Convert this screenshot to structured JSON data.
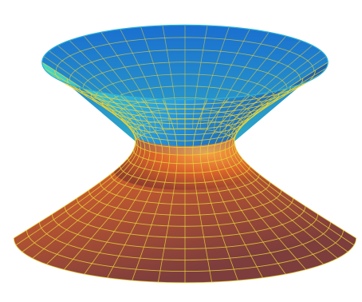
{
  "figure": {
    "subject": "",
    "colors": {
      "background": "#ffffff",
      "mesh_lines": "#e8d23a",
      "top_gradient": [
        "#3fe0c8",
        "#1f8fe6",
        "#1750a8"
      ],
      "bottom_gradient": [
        "#f2a23c",
        "#d55a2a",
        "#7a3a3a"
      ]
    }
  }
}
